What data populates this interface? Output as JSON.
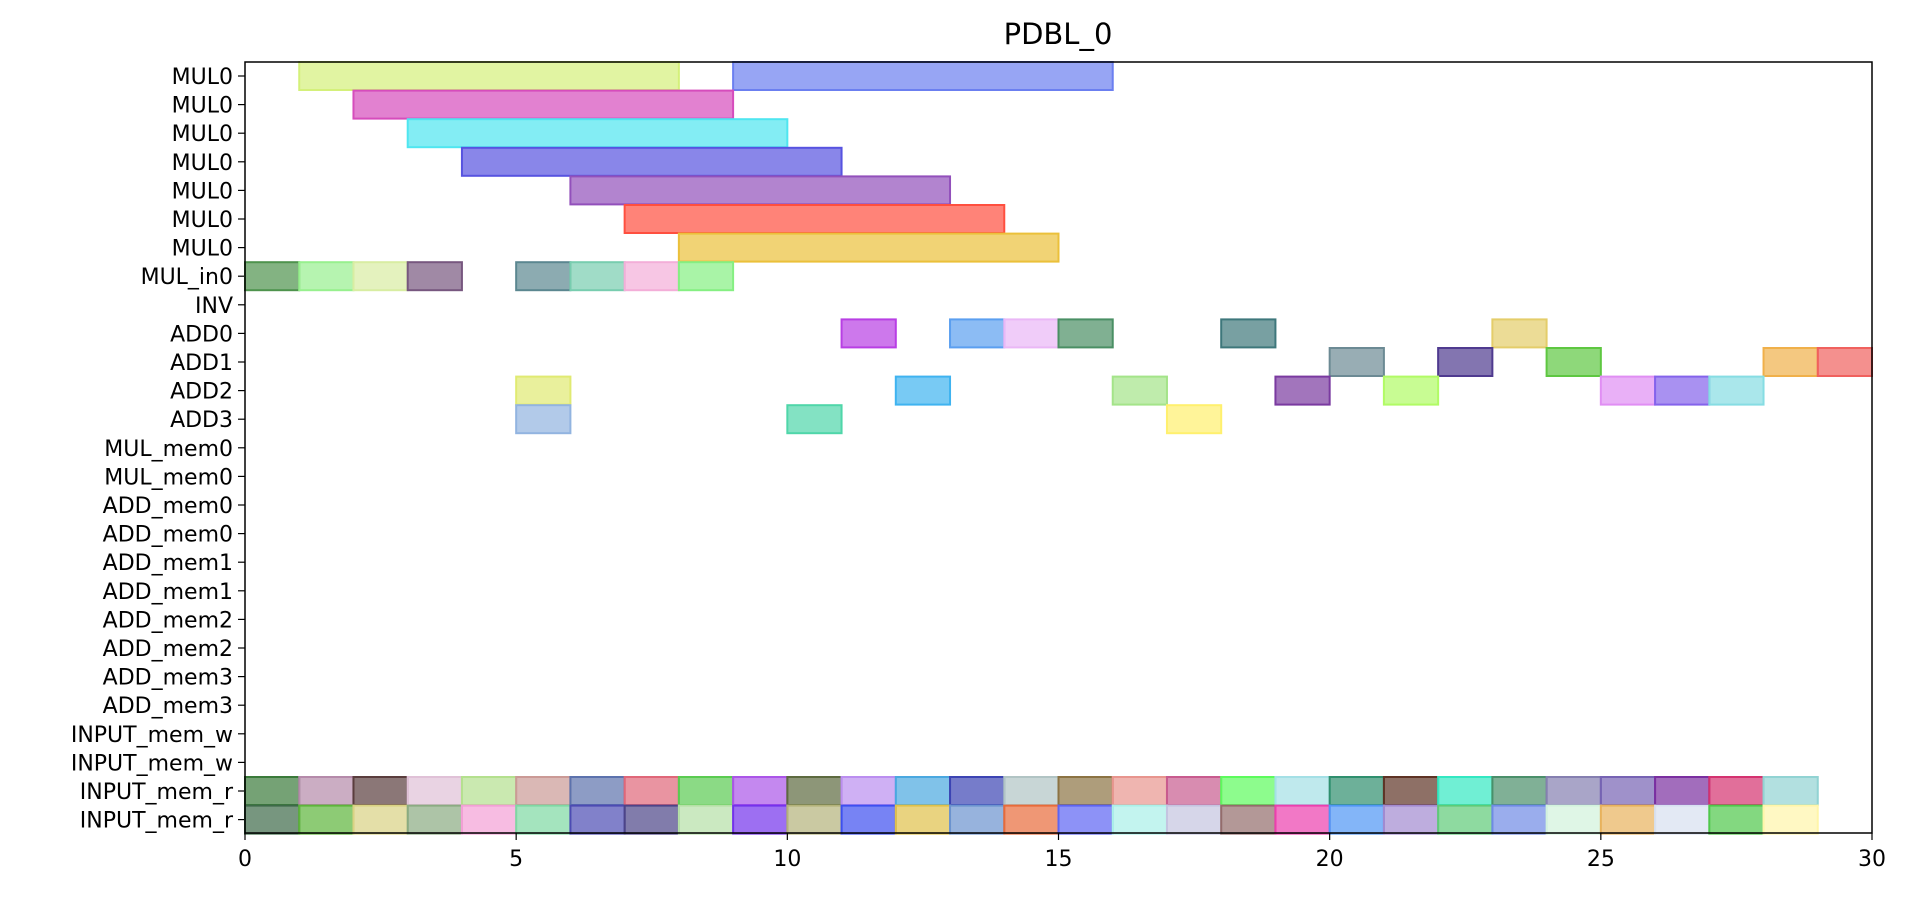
{
  "chart_data": {
    "type": "gantt",
    "title": "PDBL_0",
    "xlabel": "",
    "ylabel": "",
    "xlim": [
      0,
      30
    ],
    "x_ticks": [
      0,
      5,
      10,
      15,
      20,
      25,
      30
    ],
    "grid": false,
    "legend": false,
    "rows": [
      "MUL0",
      "MUL0",
      "MUL0",
      "MUL0",
      "MUL0",
      "MUL0",
      "MUL0",
      "MUL_in0",
      "INV",
      "ADD0",
      "ADD1",
      "ADD2",
      "ADD3",
      "MUL_mem0",
      "MUL_mem0",
      "ADD_mem0",
      "ADD_mem0",
      "ADD_mem1",
      "ADD_mem1",
      "ADD_mem2",
      "ADD_mem2",
      "ADD_mem3",
      "ADD_mem3",
      "INPUT_mem_w",
      "INPUT_mem_w",
      "INPUT_mem_r",
      "INPUT_mem_r"
    ],
    "tasks": [
      {
        "row": 0,
        "start": 1,
        "end": 8,
        "color": "#d4f07a"
      },
      {
        "row": 0,
        "start": 9,
        "end": 16,
        "color": "#6b7ff0"
      },
      {
        "row": 1,
        "start": 2,
        "end": 9,
        "color": "#d64cbc"
      },
      {
        "row": 2,
        "start": 3,
        "end": 10,
        "color": "#4fe6f0"
      },
      {
        "row": 3,
        "start": 4,
        "end": 11,
        "color": "#5753e0"
      },
      {
        "row": 4,
        "start": 6,
        "end": 13,
        "color": "#9250bb"
      },
      {
        "row": 5,
        "start": 7,
        "end": 14,
        "color": "#ff4f3f"
      },
      {
        "row": 6,
        "start": 8,
        "end": 15,
        "color": "#ebc03a"
      },
      {
        "row": 7,
        "start": 0,
        "end": 1,
        "color": "#4e934d"
      },
      {
        "row": 7,
        "start": 1,
        "end": 2,
        "color": "#97f08e"
      },
      {
        "row": 7,
        "start": 2,
        "end": 3,
        "color": "#d8eda2"
      },
      {
        "row": 7,
        "start": 3,
        "end": 4,
        "color": "#77577f"
      },
      {
        "row": 7,
        "start": 5,
        "end": 6,
        "color": "#5b8790"
      },
      {
        "row": 7,
        "start": 6,
        "end": 7,
        "color": "#78cdaf"
      },
      {
        "row": 7,
        "start": 7,
        "end": 8,
        "color": "#f3aed8"
      },
      {
        "row": 7,
        "start": 8,
        "end": 9,
        "color": "#85ef82"
      },
      {
        "row": 9,
        "start": 11,
        "end": 12,
        "color": "#b83fe4"
      },
      {
        "row": 9,
        "start": 13,
        "end": 14,
        "color": "#5b9ff0"
      },
      {
        "row": 9,
        "start": 14,
        "end": 15,
        "color": "#eab7f6"
      },
      {
        "row": 9,
        "start": 15,
        "end": 16,
        "color": "#4a8f64"
      },
      {
        "row": 9,
        "start": 18,
        "end": 19,
        "color": "#3e777b"
      },
      {
        "row": 9,
        "start": 23,
        "end": 24,
        "color": "#e4cd6a"
      },
      {
        "row": 10,
        "start": 20,
        "end": 21,
        "color": "#6c8a94"
      },
      {
        "row": 10,
        "start": 22,
        "end": 23,
        "color": "#4f3a8f"
      },
      {
        "row": 10,
        "start": 24,
        "end": 25,
        "color": "#5ec741"
      },
      {
        "row": 10,
        "start": 28,
        "end": 29,
        "color": "#f0b04a"
      },
      {
        "row": 10,
        "start": 29,
        "end": 30,
        "color": "#f0615e"
      },
      {
        "row": 11,
        "start": 5,
        "end": 6,
        "color": "#e0ea72"
      },
      {
        "row": 11,
        "start": 12,
        "end": 13,
        "color": "#3fb3f0"
      },
      {
        "row": 11,
        "start": 16,
        "end": 17,
        "color": "#a4e489"
      },
      {
        "row": 11,
        "start": 19,
        "end": 20,
        "color": "#7a3aa0"
      },
      {
        "row": 11,
        "start": 21,
        "end": 22,
        "color": "#b1fb65"
      },
      {
        "row": 11,
        "start": 25,
        "end": 26,
        "color": "#e08ef3"
      },
      {
        "row": 11,
        "start": 26,
        "end": 27,
        "color": "#8463eb"
      },
      {
        "row": 11,
        "start": 27,
        "end": 28,
        "color": "#86dde3"
      },
      {
        "row": 12,
        "start": 5,
        "end": 6,
        "color": "#92b4e0"
      },
      {
        "row": 12,
        "start": 10,
        "end": 11,
        "color": "#4fd6a9"
      },
      {
        "row": 12,
        "start": 17,
        "end": 18,
        "color": "#fff06e"
      },
      {
        "row": 25,
        "start": 0,
        "end": 1,
        "color": "#3a7a3a"
      },
      {
        "row": 25,
        "start": 1,
        "end": 2,
        "color": "#b58aaa"
      },
      {
        "row": 25,
        "start": 2,
        "end": 3,
        "color": "#5a3d3d"
      },
      {
        "row": 25,
        "start": 3,
        "end": 4,
        "color": "#e0c1d7"
      },
      {
        "row": 25,
        "start": 4,
        "end": 5,
        "color": "#b4e08e"
      },
      {
        "row": 25,
        "start": 5,
        "end": 6,
        "color": "#cb9a96"
      },
      {
        "row": 25,
        "start": 6,
        "end": 7,
        "color": "#5c72ad"
      },
      {
        "row": 25,
        "start": 7,
        "end": 8,
        "color": "#e06779"
      },
      {
        "row": 25,
        "start": 8,
        "end": 9,
        "color": "#5acb51"
      },
      {
        "row": 25,
        "start": 9,
        "end": 10,
        "color": "#ab55e8"
      },
      {
        "row": 25,
        "start": 10,
        "end": 11,
        "color": "#5d6a3f"
      },
      {
        "row": 25,
        "start": 11,
        "end": 12,
        "color": "#bb8ef0"
      },
      {
        "row": 25,
        "start": 12,
        "end": 13,
        "color": "#4aa8e0"
      },
      {
        "row": 25,
        "start": 13,
        "end": 14,
        "color": "#3c44b3"
      },
      {
        "row": 25,
        "start": 14,
        "end": 15,
        "color": "#b1c4c4"
      },
      {
        "row": 25,
        "start": 15,
        "end": 16,
        "color": "#8c7343"
      },
      {
        "row": 25,
        "start": 16,
        "end": 17,
        "color": "#e8958e"
      },
      {
        "row": 25,
        "start": 17,
        "end": 18,
        "color": "#c85b8e"
      },
      {
        "row": 25,
        "start": 18,
        "end": 19,
        "color": "#5cfb5c"
      },
      {
        "row": 25,
        "start": 19,
        "end": 20,
        "color": "#a4e0e6"
      },
      {
        "row": 25,
        "start": 20,
        "end": 21,
        "color": "#2f8f6e"
      },
      {
        "row": 25,
        "start": 21,
        "end": 22,
        "color": "#5e3325"
      },
      {
        "row": 25,
        "start": 22,
        "end": 23,
        "color": "#33e8c2"
      },
      {
        "row": 25,
        "start": 23,
        "end": 24,
        "color": "#4a8f6a"
      },
      {
        "row": 25,
        "start": 24,
        "end": 25,
        "color": "#857fb0"
      },
      {
        "row": 25,
        "start": 25,
        "end": 26,
        "color": "#7663b3"
      },
      {
        "row": 25,
        "start": 26,
        "end": 27,
        "color": "#7a2fa0"
      },
      {
        "row": 25,
        "start": 27,
        "end": 28,
        "color": "#d4326f"
      },
      {
        "row": 25,
        "start": 28,
        "end": 29,
        "color": "#91d3d3"
      },
      {
        "row": 26,
        "start": 0,
        "end": 1,
        "color": "#3d6a48"
      },
      {
        "row": 26,
        "start": 1,
        "end": 2,
        "color": "#5db53a"
      },
      {
        "row": 26,
        "start": 2,
        "end": 3,
        "color": "#d9d283"
      },
      {
        "row": 26,
        "start": 3,
        "end": 4,
        "color": "#8aab82"
      },
      {
        "row": 26,
        "start": 4,
        "end": 5,
        "color": "#f39fd6"
      },
      {
        "row": 26,
        "start": 5,
        "end": 6,
        "color": "#7ed8a3"
      },
      {
        "row": 26,
        "start": 6,
        "end": 7,
        "color": "#4c4bb3"
      },
      {
        "row": 26,
        "start": 7,
        "end": 8,
        "color": "#4c4488"
      },
      {
        "row": 26,
        "start": 8,
        "end": 9,
        "color": "#b5e0a6"
      },
      {
        "row": 26,
        "start": 9,
        "end": 10,
        "color": "#7432ec"
      },
      {
        "row": 26,
        "start": 10,
        "end": 11,
        "color": "#b3b27a"
      },
      {
        "row": 26,
        "start": 11,
        "end": 12,
        "color": "#3d4ff0"
      },
      {
        "row": 26,
        "start": 12,
        "end": 13,
        "color": "#e0c14a"
      },
      {
        "row": 26,
        "start": 13,
        "end": 14,
        "color": "#6b93cf"
      },
      {
        "row": 26,
        "start": 14,
        "end": 15,
        "color": "#e86b3a"
      },
      {
        "row": 26,
        "start": 15,
        "end": 16,
        "color": "#5d64f3"
      },
      {
        "row": 26,
        "start": 16,
        "end": 17,
        "color": "#aaf0e8"
      },
      {
        "row": 26,
        "start": 17,
        "end": 18,
        "color": "#c4c4e0"
      },
      {
        "row": 26,
        "start": 18,
        "end": 19,
        "color": "#936c6b"
      },
      {
        "row": 26,
        "start": 19,
        "end": 20,
        "color": "#ec3fae"
      },
      {
        "row": 26,
        "start": 20,
        "end": 21,
        "color": "#4f96f5"
      },
      {
        "row": 26,
        "start": 21,
        "end": 22,
        "color": "#a28ad0"
      },
      {
        "row": 26,
        "start": 22,
        "end": 23,
        "color": "#5ecb77"
      },
      {
        "row": 26,
        "start": 23,
        "end": 24,
        "color": "#6f8ae6"
      },
      {
        "row": 26,
        "start": 24,
        "end": 25,
        "color": "#d2f2dc"
      },
      {
        "row": 26,
        "start": 25,
        "end": 26,
        "color": "#e8b25c"
      },
      {
        "row": 26,
        "start": 26,
        "end": 27,
        "color": "#d7e0f0"
      },
      {
        "row": 26,
        "start": 27,
        "end": 28,
        "color": "#4fc84a"
      },
      {
        "row": 26,
        "start": 28,
        "end": 29,
        "color": "#fff5a9"
      }
    ]
  }
}
